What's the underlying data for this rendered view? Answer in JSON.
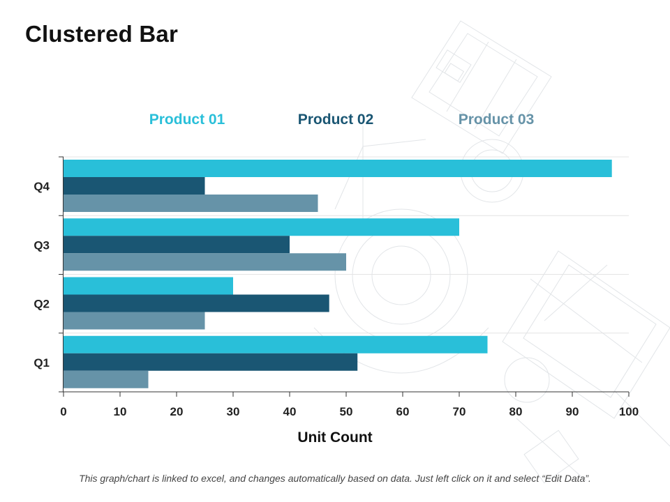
{
  "page": {
    "title": "Clustered Bar",
    "footnote": "This graph/chart is linked to excel, and changes automatically based on data. Just left click on it and select “Edit Data”."
  },
  "chart_data": {
    "type": "bar",
    "orientation": "horizontal",
    "title": "",
    "xlabel": "Unit Count",
    "ylabel": "",
    "xlim": [
      0,
      100
    ],
    "x_ticks": [
      0,
      10,
      20,
      30,
      40,
      50,
      60,
      70,
      80,
      90,
      100
    ],
    "categories": [
      "Q4",
      "Q3",
      "Q2",
      "Q1"
    ],
    "series": [
      {
        "name": "Product 01",
        "color": "#29bfd9",
        "values": [
          97,
          70,
          30,
          75
        ]
      },
      {
        "name": "Product 02",
        "color": "#1a5673",
        "values": [
          25,
          40,
          47,
          52
        ]
      },
      {
        "name": "Product 03",
        "color": "#6693a8",
        "values": [
          45,
          50,
          25,
          15
        ]
      }
    ],
    "legend_position": "top",
    "grid": true
  }
}
